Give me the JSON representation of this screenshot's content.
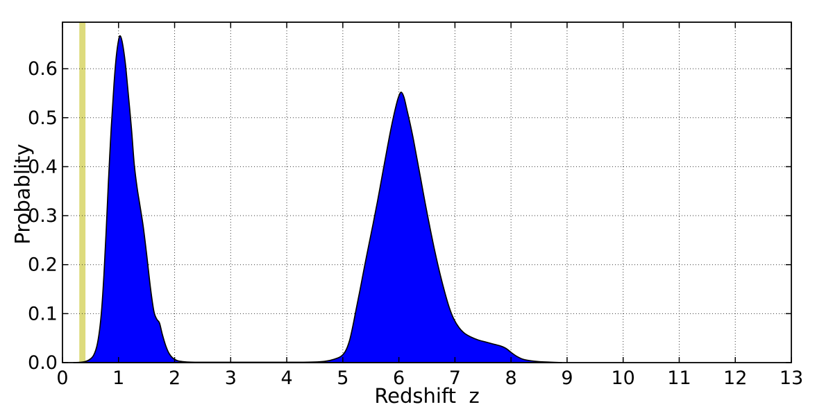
{
  "figure": {
    "background": "#FFFFFF"
  },
  "chart_data": {
    "type": "area",
    "title": "",
    "xlabel": "Redshift  z",
    "ylabel": "Probablity",
    "xlim": [
      0,
      13
    ],
    "ylim": [
      0,
      0.695
    ],
    "x_ticks": [
      0,
      1,
      2,
      3,
      4,
      5,
      6,
      7,
      8,
      9,
      10,
      11,
      12,
      13
    ],
    "x_tick_labels": [
      "0",
      "1",
      "2",
      "3",
      "4",
      "5",
      "6",
      "7",
      "8",
      "9",
      "10",
      "11",
      "12",
      "13"
    ],
    "y_ticks": [
      0.0,
      0.1,
      0.2,
      0.3,
      0.4,
      0.5,
      0.6
    ],
    "y_tick_labels": [
      "0.0",
      "0.1",
      "0.2",
      "0.3",
      "0.4",
      "0.5",
      "0.6"
    ],
    "grid": {
      "on": true,
      "style": "dotted",
      "color": "#000000"
    },
    "legend": {
      "visible": false
    },
    "colors": {
      "density_fill": "#0000FF",
      "density_edge": "#000000",
      "band": "#DDDB7D",
      "frame": "#000000"
    },
    "annotations": [
      {
        "name": "vertical-band",
        "type": "vspan",
        "z_start": 0.3,
        "z_end": 0.41,
        "color": "#DDDB7D"
      }
    ],
    "peaks": [
      {
        "z": 1.03,
        "probability": 0.667
      },
      {
        "z": 6.04,
        "probability": 0.552
      }
    ],
    "series": [
      {
        "name": "redshift-probability-density",
        "fill_color": "#0000FF",
        "edge_color": "#000000",
        "points": [
          [
            0.2,
            0.0
          ],
          [
            0.3,
            0.0005
          ],
          [
            0.4,
            0.002
          ],
          [
            0.48,
            0.006
          ],
          [
            0.55,
            0.014
          ],
          [
            0.61,
            0.032
          ],
          [
            0.66,
            0.065
          ],
          [
            0.7,
            0.11
          ],
          [
            0.74,
            0.18
          ],
          [
            0.78,
            0.27
          ],
          [
            0.82,
            0.37
          ],
          [
            0.87,
            0.48
          ],
          [
            0.92,
            0.57
          ],
          [
            0.96,
            0.625
          ],
          [
            1.0,
            0.658
          ],
          [
            1.03,
            0.667
          ],
          [
            1.07,
            0.652
          ],
          [
            1.12,
            0.612
          ],
          [
            1.17,
            0.553
          ],
          [
            1.23,
            0.478
          ],
          [
            1.28,
            0.405
          ],
          [
            1.33,
            0.358
          ],
          [
            1.38,
            0.322
          ],
          [
            1.44,
            0.278
          ],
          [
            1.5,
            0.222
          ],
          [
            1.57,
            0.152
          ],
          [
            1.63,
            0.105
          ],
          [
            1.68,
            0.089
          ],
          [
            1.73,
            0.081
          ],
          [
            1.78,
            0.058
          ],
          [
            1.84,
            0.035
          ],
          [
            1.9,
            0.019
          ],
          [
            1.97,
            0.009
          ],
          [
            2.05,
            0.004
          ],
          [
            2.15,
            0.002
          ],
          [
            2.3,
            0.001
          ],
          [
            2.6,
            0.0008
          ],
          [
            3.0,
            0.0008
          ],
          [
            3.5,
            0.0008
          ],
          [
            4.0,
            0.0008
          ],
          [
            4.3,
            0.0008
          ],
          [
            4.55,
            0.0015
          ],
          [
            4.7,
            0.003
          ],
          [
            4.85,
            0.007
          ],
          [
            4.97,
            0.013
          ],
          [
            5.05,
            0.024
          ],
          [
            5.12,
            0.045
          ],
          [
            5.18,
            0.075
          ],
          [
            5.24,
            0.11
          ],
          [
            5.31,
            0.15
          ],
          [
            5.38,
            0.192
          ],
          [
            5.46,
            0.238
          ],
          [
            5.54,
            0.283
          ],
          [
            5.62,
            0.33
          ],
          [
            5.7,
            0.38
          ],
          [
            5.78,
            0.43
          ],
          [
            5.86,
            0.478
          ],
          [
            5.93,
            0.515
          ],
          [
            5.99,
            0.541
          ],
          [
            6.04,
            0.552
          ],
          [
            6.09,
            0.542
          ],
          [
            6.14,
            0.518
          ],
          [
            6.2,
            0.488
          ],
          [
            6.26,
            0.455
          ],
          [
            6.32,
            0.418
          ],
          [
            6.39,
            0.375
          ],
          [
            6.47,
            0.325
          ],
          [
            6.55,
            0.278
          ],
          [
            6.64,
            0.228
          ],
          [
            6.73,
            0.183
          ],
          [
            6.82,
            0.143
          ],
          [
            6.9,
            0.112
          ],
          [
            6.98,
            0.089
          ],
          [
            7.07,
            0.072
          ],
          [
            7.17,
            0.06
          ],
          [
            7.29,
            0.052
          ],
          [
            7.42,
            0.046
          ],
          [
            7.55,
            0.042
          ],
          [
            7.68,
            0.038
          ],
          [
            7.81,
            0.034
          ],
          [
            7.91,
            0.029
          ],
          [
            8.0,
            0.021
          ],
          [
            8.1,
            0.013
          ],
          [
            8.21,
            0.007
          ],
          [
            8.34,
            0.004
          ],
          [
            8.5,
            0.002
          ],
          [
            8.7,
            0.001
          ],
          [
            8.9,
            0.0
          ]
        ]
      }
    ]
  }
}
